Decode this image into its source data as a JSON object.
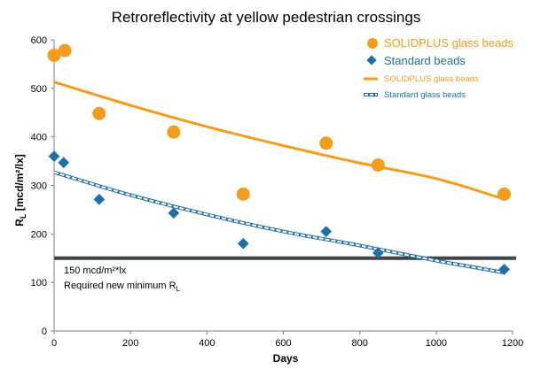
{
  "chart_data": {
    "type": "scatter",
    "title": "Retroreflectivity at yellow pedestrian crossings",
    "xlabel": "Days",
    "ylabel_main": "R",
    "ylabel_sub": "L",
    "ylabel_rest": " [mcd/m²/lx]",
    "xlim": [
      0,
      1200
    ],
    "ylim": [
      0,
      600
    ],
    "x_ticks": [
      0,
      200,
      400,
      600,
      800,
      1000,
      1200
    ],
    "y_ticks": [
      0,
      100,
      200,
      300,
      400,
      500,
      600
    ],
    "grid": false,
    "legend_position": "top-right",
    "series": [
      {
        "name": "SOLIDPLUS glass beads",
        "marker": "circle",
        "color": "#F39C1E",
        "points": [
          {
            "x": 0,
            "y": 568
          },
          {
            "x": 28,
            "y": 578
          },
          {
            "x": 118,
            "y": 448
          },
          {
            "x": 313,
            "y": 410
          },
          {
            "x": 495,
            "y": 282
          },
          {
            "x": 712,
            "y": 387
          },
          {
            "x": 848,
            "y": 342
          },
          {
            "x": 1178,
            "y": 282
          }
        ]
      },
      {
        "name": "Standard beads",
        "marker": "diamond",
        "color": "#1F6FA8",
        "points": [
          {
            "x": 0,
            "y": 360
          },
          {
            "x": 25,
            "y": 347
          },
          {
            "x": 118,
            "y": 271
          },
          {
            "x": 313,
            "y": 243
          },
          {
            "x": 495,
            "y": 180
          },
          {
            "x": 712,
            "y": 205
          },
          {
            "x": 848,
            "y": 161
          },
          {
            "x": 1178,
            "y": 127
          }
        ]
      }
    ],
    "trendlines": [
      {
        "name": "SOLIDPLUS glass beads",
        "style": "solid",
        "color": "#F39C1E",
        "x": [
          0,
          200,
          400,
          600,
          800,
          1000,
          1180
        ],
        "y": [
          513,
          465,
          421,
          382,
          346,
          314,
          271
        ]
      },
      {
        "name": "Standard glass beads",
        "style": "dashed",
        "color": "#1F6FA8",
        "x": [
          0,
          200,
          400,
          600,
          800,
          1000,
          1180
        ],
        "y": [
          327,
          280,
          240,
          205,
          176,
          145,
          120
        ]
      }
    ],
    "reference_line": {
      "y": 150,
      "color": "#3F4448",
      "label_line1": "150 mcd/m²*lx",
      "label_line2_main": "Required new minimum R",
      "label_line2_sub": "L"
    }
  }
}
